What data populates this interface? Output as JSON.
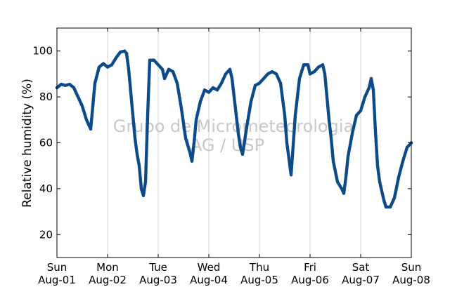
{
  "chart_data": {
    "type": "scatter",
    "xlabel": "",
    "ylabel": "Relative humidity (%)",
    "ylim": [
      10,
      110
    ],
    "yticks": [
      20,
      40,
      60,
      80,
      100
    ],
    "xlim": [
      "Aug-01",
      "Aug-08"
    ],
    "xticks": [
      {
        "day": "Sun",
        "date": "Aug-01"
      },
      {
        "day": "Mon",
        "date": "Aug-02"
      },
      {
        "day": "Tue",
        "date": "Aug-03"
      },
      {
        "day": "Wed",
        "date": "Aug-04"
      },
      {
        "day": "Thu",
        "date": "Aug-05"
      },
      {
        "day": "Fri",
        "date": "Aug-06"
      },
      {
        "day": "Sat",
        "date": "Aug-07"
      },
      {
        "day": "Sun",
        "date": "Aug-08"
      }
    ],
    "grid": "vertical",
    "marker_color": "#0d4a8a",
    "watermark": [
      "Grupo de Micrometeorologia",
      "IAG / USP"
    ],
    "series": [
      {
        "values": [
          [
            "Aug-01 00:00",
            84
          ],
          [
            "Aug-01 02:00",
            85.5
          ],
          [
            "Aug-01 04:00",
            85
          ],
          [
            "Aug-01 06:00",
            85.5
          ],
          [
            "Aug-01 08:00",
            84
          ],
          [
            "Aug-01 10:00",
            80
          ],
          [
            "Aug-01 12:00",
            76
          ],
          [
            "Aug-01 14:00",
            70
          ],
          [
            "Aug-01 16:00",
            66
          ],
          [
            "Aug-01 17:00",
            76
          ],
          [
            "Aug-01 18:00",
            86
          ],
          [
            "Aug-01 20:00",
            93
          ],
          [
            "Aug-01 22:00",
            94.5
          ],
          [
            "Aug-02 00:00",
            93
          ],
          [
            "Aug-02 02:00",
            94
          ],
          [
            "Aug-02 04:00",
            97
          ],
          [
            "Aug-02 06:00",
            99.5
          ],
          [
            "Aug-02 08:00",
            100
          ],
          [
            "Aug-02 09:00",
            99
          ],
          [
            "Aug-02 10:00",
            92
          ],
          [
            "Aug-02 11:00",
            82
          ],
          [
            "Aug-02 12:00",
            72
          ],
          [
            "Aug-02 13:00",
            62
          ],
          [
            "Aug-02 14:00",
            55
          ],
          [
            "Aug-02 15:00",
            50
          ],
          [
            "Aug-02 16:00",
            40
          ],
          [
            "Aug-02 17:00",
            37
          ],
          [
            "Aug-02 18:00",
            43
          ],
          [
            "Aug-02 19:00",
            72
          ],
          [
            "Aug-02 20:00",
            96
          ],
          [
            "Aug-02 22:00",
            96
          ],
          [
            "Aug-03 00:00",
            94
          ],
          [
            "Aug-03 02:00",
            92
          ],
          [
            "Aug-03 03:00",
            88
          ],
          [
            "Aug-03 05:00",
            92
          ],
          [
            "Aug-03 07:00",
            91
          ],
          [
            "Aug-03 09:00",
            86
          ],
          [
            "Aug-03 11:00",
            75
          ],
          [
            "Aug-03 13:00",
            62
          ],
          [
            "Aug-03 15:00",
            56
          ],
          [
            "Aug-03 16:00",
            52
          ],
          [
            "Aug-03 17:00",
            60
          ],
          [
            "Aug-03 18:00",
            70
          ],
          [
            "Aug-03 20:00",
            78
          ],
          [
            "Aug-03 22:00",
            83
          ],
          [
            "Aug-04 00:00",
            82
          ],
          [
            "Aug-04 02:00",
            84
          ],
          [
            "Aug-04 04:00",
            83
          ],
          [
            "Aug-04 06:00",
            86
          ],
          [
            "Aug-04 08:00",
            90
          ],
          [
            "Aug-04 10:00",
            92
          ],
          [
            "Aug-04 11:00",
            88
          ],
          [
            "Aug-04 12:00",
            80
          ],
          [
            "Aug-04 13:00",
            72
          ],
          [
            "Aug-04 14:00",
            64
          ],
          [
            "Aug-04 15:00",
            58
          ],
          [
            "Aug-04 16:00",
            55
          ],
          [
            "Aug-04 18:00",
            67
          ],
          [
            "Aug-04 20:00",
            78
          ],
          [
            "Aug-04 22:00",
            85
          ],
          [
            "Aug-05 00:00",
            86
          ],
          [
            "Aug-05 02:00",
            88
          ],
          [
            "Aug-05 04:00",
            90
          ],
          [
            "Aug-05 06:00",
            91
          ],
          [
            "Aug-05 08:00",
            90
          ],
          [
            "Aug-05 10:00",
            86
          ],
          [
            "Aug-05 12:00",
            72
          ],
          [
            "Aug-05 13:00",
            60
          ],
          [
            "Aug-05 14:00",
            53
          ],
          [
            "Aug-05 15:00",
            46
          ],
          [
            "Aug-05 17:00",
            72
          ],
          [
            "Aug-05 19:00",
            88
          ],
          [
            "Aug-05 21:00",
            94
          ],
          [
            "Aug-05 23:00",
            94
          ],
          [
            "Aug-06 00:00",
            90
          ],
          [
            "Aug-06 02:00",
            91
          ],
          [
            "Aug-06 04:00",
            93
          ],
          [
            "Aug-06 06:00",
            94
          ],
          [
            "Aug-06 07:00",
            90
          ],
          [
            "Aug-06 08:00",
            80
          ],
          [
            "Aug-06 09:00",
            70
          ],
          [
            "Aug-06 10:00",
            62
          ],
          [
            "Aug-06 11:00",
            52
          ],
          [
            "Aug-06 13:00",
            43
          ],
          [
            "Aug-06 15:00",
            40
          ],
          [
            "Aug-06 16:00",
            38
          ],
          [
            "Aug-06 17:00",
            45
          ],
          [
            "Aug-06 18:00",
            54
          ],
          [
            "Aug-06 20:00",
            64
          ],
          [
            "Aug-06 22:00",
            72
          ],
          [
            "Aug-07 00:00",
            74
          ],
          [
            "Aug-07 02:00",
            80
          ],
          [
            "Aug-07 04:00",
            84
          ],
          [
            "Aug-07 05:00",
            88
          ],
          [
            "Aug-07 06:00",
            83
          ],
          [
            "Aug-07 07:00",
            65
          ],
          [
            "Aug-07 08:00",
            50
          ],
          [
            "Aug-07 09:00",
            43
          ],
          [
            "Aug-07 11:00",
            35
          ],
          [
            "Aug-07 12:00",
            32
          ],
          [
            "Aug-07 14:00",
            32
          ],
          [
            "Aug-07 16:00",
            36
          ],
          [
            "Aug-07 18:00",
            45
          ],
          [
            "Aug-07 20:00",
            52
          ],
          [
            "Aug-07 22:00",
            58
          ],
          [
            "Aug-08 00:00",
            60
          ]
        ]
      }
    ]
  }
}
